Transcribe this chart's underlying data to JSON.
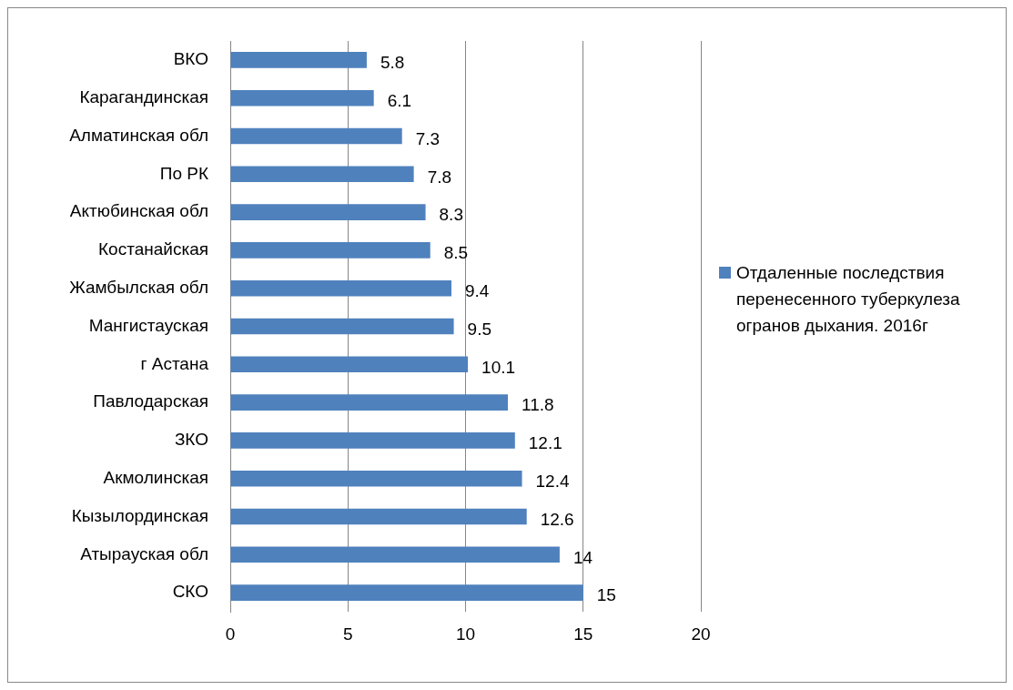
{
  "chart_data": {
    "type": "bar",
    "orientation": "horizontal",
    "categories": [
      "ВКО",
      "Карагандинская",
      "Алматинская обл",
      "По РК",
      "Актюбинская обл",
      "Костанайская",
      "Жамбылская обл",
      "Мангистауская",
      "г Астана",
      "Павлодарская",
      "ЗКО",
      "Акмолинская",
      "Кызылординская",
      "Атырауская обл",
      "СКО"
    ],
    "series": [
      {
        "name": "Отдаленные последствия перенесенного туберкулеза огранов дыхания. 2016г",
        "color": "#4f81bd",
        "values": [
          5.8,
          6.1,
          7.3,
          7.8,
          8.3,
          8.5,
          9.4,
          9.5,
          10.1,
          11.8,
          12.1,
          12.4,
          12.6,
          14,
          15
        ]
      }
    ],
    "xlim": [
      0,
      20
    ],
    "xticks": [
      0,
      5,
      10,
      15,
      20
    ],
    "grid": "x",
    "legend": "right",
    "data_labels": true
  }
}
